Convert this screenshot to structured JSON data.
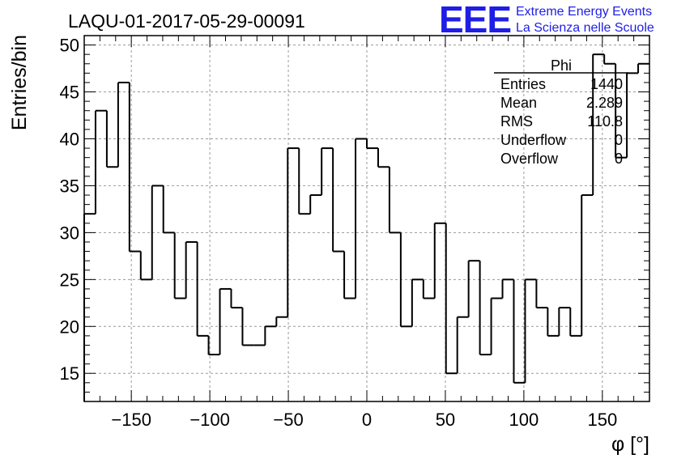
{
  "chart_data": {
    "type": "histogram",
    "title": "LAQU-01-2017-05-29-00091",
    "xlabel": "φ [°]",
    "ylabel": "Entries/bin",
    "xlim": [
      -180,
      180
    ],
    "ylim": [
      12,
      51
    ],
    "bin_width": 7.2,
    "x_ticks": [
      -150,
      -100,
      -50,
      0,
      50,
      100,
      150
    ],
    "y_ticks": [
      15,
      20,
      25,
      30,
      35,
      40,
      45,
      50
    ],
    "grid": true,
    "line_color": "#000000",
    "bin_low_edges": [
      -180,
      -172.8,
      -165.6,
      -158.4,
      -151.2,
      -144,
      -136.8,
      -129.6,
      -122.4,
      -115.2,
      -108,
      -100.8,
      -93.6,
      -86.4,
      -79.2,
      -72,
      -64.8,
      -57.6,
      -50.4,
      -43.2,
      -36,
      -28.8,
      -21.6,
      -14.4,
      -7.2,
      0,
      7.2,
      14.4,
      21.6,
      28.8,
      36,
      43.2,
      50.4,
      57.6,
      64.8,
      72,
      79.2,
      86.4,
      93.6,
      100.8,
      108,
      115.2,
      122.4,
      129.6,
      136.8,
      144,
      151.2,
      158.4,
      165.6,
      172.8
    ],
    "values": [
      32,
      43,
      37,
      46,
      28,
      25,
      35,
      30,
      23,
      29,
      19,
      17,
      24,
      22,
      18,
      18,
      20,
      21,
      39,
      32,
      34,
      39,
      28,
      23,
      40,
      39,
      37,
      30,
      20,
      25,
      23,
      31,
      15,
      21,
      27,
      17,
      23,
      25,
      14,
      25,
      22,
      19,
      22,
      19,
      34,
      49,
      48,
      38,
      47,
      48
    ]
  },
  "stats_box": {
    "name": "Phi",
    "rows": [
      {
        "label": "Entries",
        "value": "1440"
      },
      {
        "label": "Mean",
        "value": "2.289"
      },
      {
        "label": "RMS",
        "value": "110.8"
      },
      {
        "label": "Underflow",
        "value": "0"
      },
      {
        "label": "Overflow",
        "value": "0"
      }
    ]
  },
  "logo": {
    "mark": "EEE",
    "line1": "Extreme Energy Events",
    "line2": "La Scienza nelle Scuole",
    "color": "#1e1ee6"
  }
}
